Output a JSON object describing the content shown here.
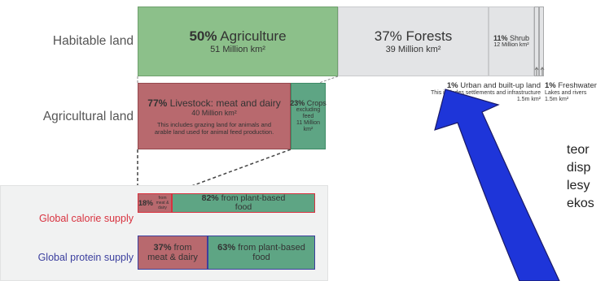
{
  "rows": {
    "habitable_label": "Habitable land",
    "agricultural_label": "Agricultural land",
    "calorie_label": "Global calorie supply",
    "protein_label": "Global protein supply"
  },
  "habitable": {
    "agriculture_pct": "50%",
    "agriculture_name": "Agriculture",
    "agriculture_area": "51 Million km²",
    "forests_pct": "37%",
    "forests_name": "Forests",
    "forests_area": "39 Million km²",
    "shrub_pct": "11%",
    "shrub_name": "Shrub",
    "shrub_area": "12 Million km²",
    "urban_pct": "1%",
    "urban_name": "Urban and built-up land",
    "urban_note": "This includes settlements and infrastructure",
    "urban_area": "1.5m km²",
    "fresh_pct": "1%",
    "fresh_name": "Freshwater",
    "fresh_note": "Lakes and rivers",
    "fresh_area": "1.5m km²"
  },
  "agricultural": {
    "livestock_pct": "77%",
    "livestock_name": "Livestock: meat and dairy",
    "livestock_area": "40 Million km²",
    "livestock_note1": "This includes grazing land for animals and",
    "livestock_note2": "arable land used for animal feed production.",
    "crops_pct": "23%",
    "crops_name": "Crops",
    "crops_note": "excluding feed",
    "crops_area": "11 Million km²"
  },
  "calorie": {
    "meat_pct": "18%",
    "meat_note1": "from",
    "meat_note2": "meat & dairy",
    "plant_pct": "82%",
    "plant_line1": "from plant-based",
    "plant_line2": "food"
  },
  "protein": {
    "meat_pct": "37%",
    "meat_line1": "from",
    "meat_line2": "meat & dairy",
    "plant_pct": "63%",
    "plant_line1": "from plant-based",
    "plant_line2": "food"
  },
  "side_text": {
    "line1": "teor",
    "line2": "disp",
    "line3": "lesy",
    "line4": "ekos"
  },
  "colors": {
    "agriculture": "#8cc08a",
    "forests": "#e3e4e6",
    "livestock": "#b8696e",
    "crops": "#5ea584",
    "arrow": "#1e35d9",
    "calorie_border": "#d8323f",
    "protein_border": "#3b3f9e"
  }
}
